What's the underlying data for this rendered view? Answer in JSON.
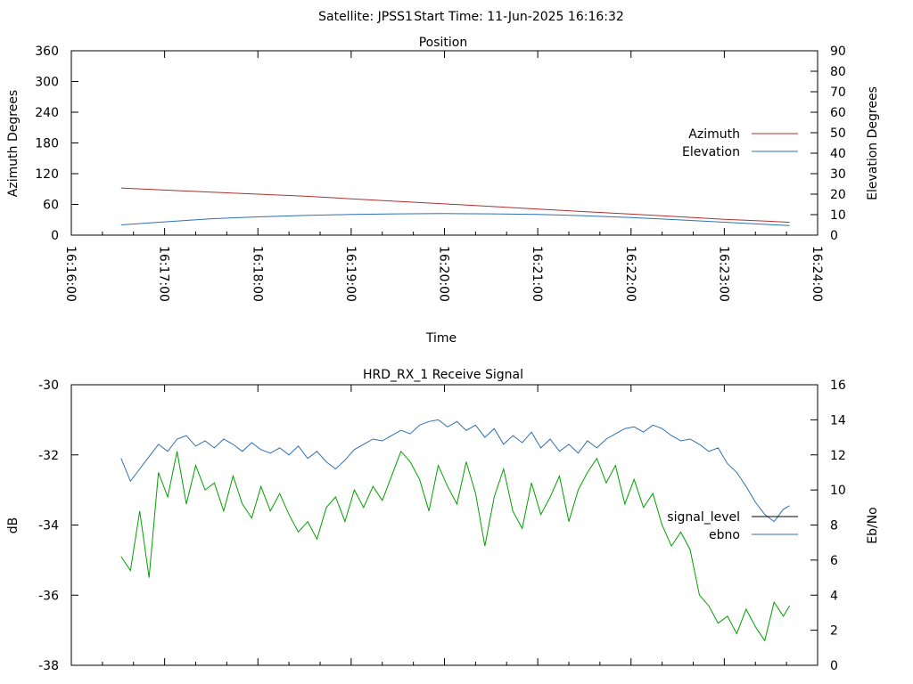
{
  "header": {
    "satellite_label": "Satellite: JPSS1",
    "start_time_label": "Start Time: 11-Jun-2025 16:16:32"
  },
  "chart_data": [
    {
      "type": "line",
      "title": "Position",
      "xlabel": "Time",
      "ylabel_left": "Azimuth Degrees",
      "ylabel_right": "Elevation Degrees",
      "x_ticks": [
        "16:16:00",
        "16:17:00",
        "16:18:00",
        "16:19:00",
        "16:20:00",
        "16:21:00",
        "16:22:00",
        "16:23:00",
        "16:24:00"
      ],
      "xlim": [
        "16:16:00",
        "16:24:00"
      ],
      "ylim_left": [
        0,
        360
      ],
      "ylim_right": [
        0,
        90
      ],
      "y_ticks_left": [
        0,
        60,
        120,
        180,
        240,
        300,
        360
      ],
      "y_ticks_right": [
        0,
        10,
        20,
        30,
        40,
        50,
        60,
        70,
        80,
        90
      ],
      "legend_position": "right",
      "grid": false,
      "series": [
        {
          "name": "Azimuth",
          "axis": "left",
          "color": "#b03030",
          "x": [
            "16:16:32",
            "16:17:00",
            "16:17:30",
            "16:18:00",
            "16:18:30",
            "16:19:00",
            "16:19:30",
            "16:20:00",
            "16:20:30",
            "16:21:00",
            "16:21:30",
            "16:22:00",
            "16:22:30",
            "16:23:00",
            "16:23:30",
            "16:23:42"
          ],
          "y": [
            92,
            88,
            84,
            80,
            76,
            71,
            66,
            61,
            56,
            51,
            46,
            41,
            36,
            31,
            27,
            25
          ]
        },
        {
          "name": "Elevation",
          "axis": "right",
          "color": "#3070b0",
          "x": [
            "16:16:32",
            "16:17:00",
            "16:17:30",
            "16:18:00",
            "16:18:30",
            "16:19:00",
            "16:19:30",
            "16:20:00",
            "16:20:30",
            "16:21:00",
            "16:21:30",
            "16:22:00",
            "16:22:30",
            "16:23:00",
            "16:23:30",
            "16:23:42"
          ],
          "y": [
            5,
            6.5,
            8,
            8.9,
            9.6,
            10.1,
            10.4,
            10.5,
            10.4,
            10.1,
            9.5,
            8.6,
            7.5,
            6.3,
            5.1,
            4.7
          ]
        }
      ]
    },
    {
      "type": "line",
      "title": "HRD_RX_1 Receive Signal",
      "ylabel_left": "dB",
      "ylabel_right": "Eb/No",
      "xlim": [
        "16:16:00",
        "16:24:00"
      ],
      "ylim_left": [
        -38,
        -30
      ],
      "ylim_right": [
        0,
        16
      ],
      "y_ticks_left": [
        -30,
        -32,
        -34,
        -36,
        -38
      ],
      "y_ticks_right": [
        0,
        2,
        4,
        6,
        8,
        10,
        12,
        14,
        16
      ],
      "legend_position": "right",
      "grid": false,
      "series": [
        {
          "name": "signal_level",
          "axis": "left",
          "color": "#00a000",
          "x": [
            "16:16:32",
            "16:16:38",
            "16:16:44",
            "16:16:50",
            "16:16:56",
            "16:17:02",
            "16:17:08",
            "16:17:14",
            "16:17:20",
            "16:17:26",
            "16:17:32",
            "16:17:38",
            "16:17:44",
            "16:17:50",
            "16:17:56",
            "16:18:02",
            "16:18:08",
            "16:18:14",
            "16:18:20",
            "16:18:26",
            "16:18:32",
            "16:18:38",
            "16:18:44",
            "16:18:50",
            "16:18:56",
            "16:19:02",
            "16:19:08",
            "16:19:14",
            "16:19:20",
            "16:19:26",
            "16:19:32",
            "16:19:38",
            "16:19:44",
            "16:19:50",
            "16:19:56",
            "16:20:02",
            "16:20:08",
            "16:20:14",
            "16:20:20",
            "16:20:26",
            "16:20:32",
            "16:20:38",
            "16:20:44",
            "16:20:50",
            "16:20:56",
            "16:21:02",
            "16:21:08",
            "16:21:14",
            "16:21:20",
            "16:21:26",
            "16:21:32",
            "16:21:38",
            "16:21:44",
            "16:21:50",
            "16:21:56",
            "16:22:02",
            "16:22:08",
            "16:22:14",
            "16:22:20",
            "16:22:26",
            "16:22:32",
            "16:22:38",
            "16:22:44",
            "16:22:50",
            "16:22:56",
            "16:23:02",
            "16:23:08",
            "16:23:14",
            "16:23:20",
            "16:23:26",
            "16:23:32",
            "16:23:38",
            "16:23:42"
          ],
          "y": [
            -34.9,
            -35.3,
            -33.6,
            -35.5,
            -32.5,
            -33.2,
            -31.9,
            -33.4,
            -32.3,
            -33.0,
            -32.8,
            -33.6,
            -32.6,
            -33.4,
            -33.8,
            -32.9,
            -33.6,
            -33.1,
            -33.7,
            -34.2,
            -33.9,
            -34.4,
            -33.5,
            -33.2,
            -33.9,
            -33.0,
            -33.5,
            -32.9,
            -33.3,
            -32.6,
            -31.9,
            -32.2,
            -32.7,
            -33.6,
            -32.3,
            -32.9,
            -33.4,
            -32.2,
            -33.1,
            -34.6,
            -33.2,
            -32.4,
            -33.6,
            -34.1,
            -32.8,
            -33.7,
            -33.2,
            -32.6,
            -33.9,
            -33.0,
            -32.5,
            -32.1,
            -32.8,
            -32.3,
            -33.4,
            -32.7,
            -33.5,
            -33.1,
            -34.0,
            -34.6,
            -34.2,
            -34.7,
            -36.0,
            -36.3,
            -36.8,
            -36.6,
            -37.1,
            -36.4,
            -36.9,
            -37.3,
            -36.2,
            -36.6,
            -36.3
          ]
        },
        {
          "name": "ebno",
          "axis": "right",
          "color": "#3070b0",
          "x": [
            "16:16:32",
            "16:16:38",
            "16:16:44",
            "16:16:50",
            "16:16:56",
            "16:17:02",
            "16:17:08",
            "16:17:14",
            "16:17:20",
            "16:17:26",
            "16:17:32",
            "16:17:38",
            "16:17:44",
            "16:17:50",
            "16:17:56",
            "16:18:02",
            "16:18:08",
            "16:18:14",
            "16:18:20",
            "16:18:26",
            "16:18:32",
            "16:18:38",
            "16:18:44",
            "16:18:50",
            "16:18:56",
            "16:19:02",
            "16:19:08",
            "16:19:14",
            "16:19:20",
            "16:19:26",
            "16:19:32",
            "16:19:38",
            "16:19:44",
            "16:19:50",
            "16:19:56",
            "16:20:02",
            "16:20:08",
            "16:20:14",
            "16:20:20",
            "16:20:26",
            "16:20:32",
            "16:20:38",
            "16:20:44",
            "16:20:50",
            "16:20:56",
            "16:21:02",
            "16:21:08",
            "16:21:14",
            "16:21:20",
            "16:21:26",
            "16:21:32",
            "16:21:38",
            "16:21:44",
            "16:21:50",
            "16:21:56",
            "16:22:02",
            "16:22:08",
            "16:22:14",
            "16:22:20",
            "16:22:26",
            "16:22:32",
            "16:22:38",
            "16:22:44",
            "16:22:50",
            "16:22:56",
            "16:23:02",
            "16:23:08",
            "16:23:14",
            "16:23:20",
            "16:23:26",
            "16:23:32",
            "16:23:38",
            "16:23:42"
          ],
          "y": [
            11.8,
            10.5,
            11.2,
            11.9,
            12.6,
            12.2,
            12.9,
            13.1,
            12.5,
            12.8,
            12.4,
            12.9,
            12.6,
            12.2,
            12.7,
            12.3,
            12.1,
            12.4,
            12.0,
            12.5,
            11.8,
            12.2,
            11.6,
            11.2,
            11.7,
            12.3,
            12.6,
            12.9,
            12.8,
            13.1,
            13.4,
            13.2,
            13.7,
            13.9,
            14.0,
            13.6,
            13.9,
            13.4,
            13.7,
            13.0,
            13.5,
            12.6,
            13.1,
            12.7,
            13.3,
            12.4,
            12.9,
            12.2,
            12.6,
            12.1,
            12.8,
            12.4,
            12.9,
            13.2,
            13.5,
            13.6,
            13.3,
            13.7,
            13.5,
            13.1,
            12.8,
            12.9,
            12.6,
            12.2,
            12.4,
            11.5,
            11.0,
            10.2,
            9.3,
            8.6,
            8.2,
            8.9,
            9.1
          ]
        }
      ]
    }
  ]
}
